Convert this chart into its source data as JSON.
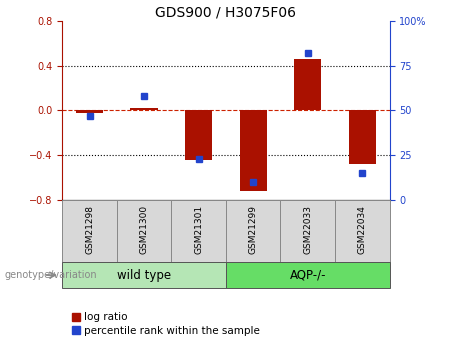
{
  "title": "GDS900 / H3075F06",
  "samples": [
    "GSM21298",
    "GSM21300",
    "GSM21301",
    "GSM21299",
    "GSM22033",
    "GSM22034"
  ],
  "log_ratios": [
    -0.02,
    0.02,
    -0.44,
    -0.72,
    0.46,
    -0.48
  ],
  "percentile_ranks": [
    47,
    58,
    23,
    10,
    82,
    15
  ],
  "groups": [
    {
      "label": "wild type",
      "start": 0,
      "end": 3,
      "color": "#b5e6b5"
    },
    {
      "label": "AQP-/-",
      "start": 3,
      "end": 6,
      "color": "#66dd66"
    }
  ],
  "group_label": "genotype/variation",
  "ylim_left": [
    -0.8,
    0.8
  ],
  "ylim_right": [
    0,
    100
  ],
  "yticks_left": [
    -0.8,
    -0.4,
    0.0,
    0.4,
    0.8
  ],
  "yticks_right": [
    0,
    25,
    50,
    75,
    100
  ],
  "bar_color_red": "#aa1100",
  "bar_color_blue": "#2244cc",
  "dotted_line_color": "#000000",
  "zero_line_color": "#cc2200",
  "bar_width": 0.5,
  "title_fontsize": 10,
  "tick_fontsize": 7,
  "label_fontsize": 6.5,
  "legend_fontsize": 7.5,
  "group_fontsize": 8.5
}
